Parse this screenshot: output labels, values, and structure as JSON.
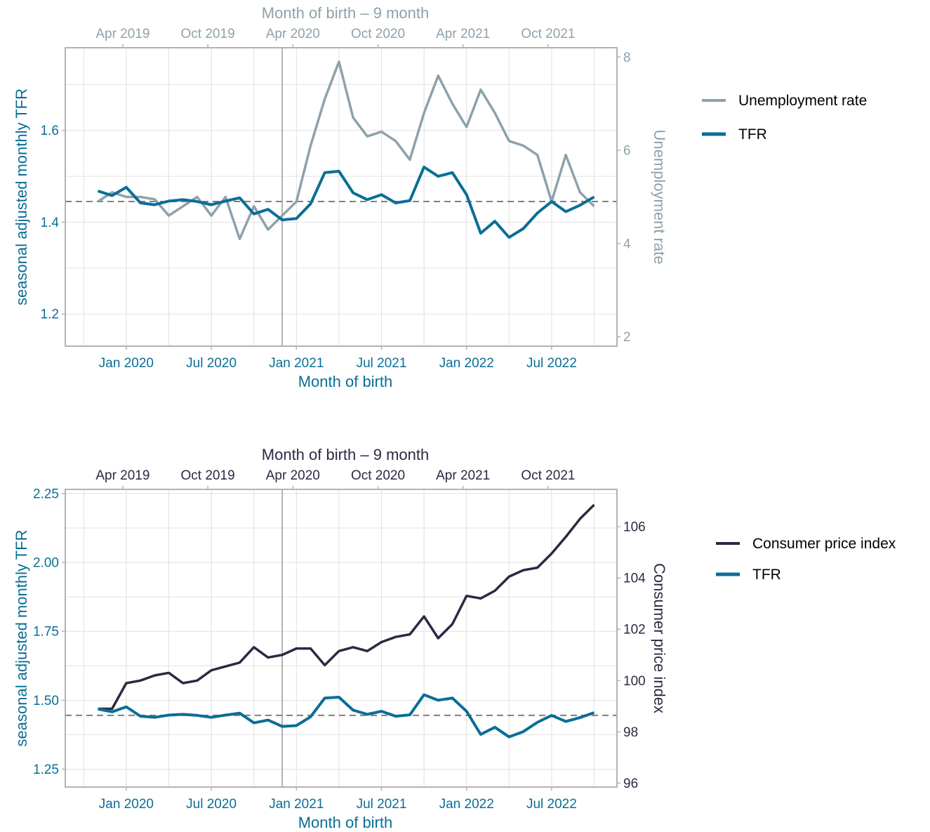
{
  "colors": {
    "tfr": "#0a6e96",
    "unemployment": "#8fa1ab",
    "cpi": "#2e2843",
    "reference": "#7f7f7f",
    "grid": "#e0e0e0",
    "frame": "#b3b3b3"
  },
  "chart_data": [
    {
      "type": "line",
      "xlabel": "Month of birth",
      "x2label": "Month of birth – 9 month",
      "ylabel": "seasonal adjusted monthly TFR",
      "y2label": "Unemployment rate",
      "x_ticks": [
        "Jan 2020",
        "Jul 2020",
        "Jan 2021",
        "Jul 2021",
        "Jan 2022",
        "Jul 2022"
      ],
      "x2_ticks": [
        "Apr 2019",
        "Oct 2019",
        "Apr 2020",
        "Oct 2020",
        "Apr 2021",
        "Oct 2021"
      ],
      "y_ticks": [
        "1.2",
        "1.4",
        "1.6"
      ],
      "y2_ticks": [
        "2",
        "4",
        "6",
        "8"
      ],
      "x_start": "Nov 2019",
      "ylim": [
        1.13,
        1.78
      ],
      "y2lim": [
        1.8,
        8.2
      ],
      "reference_line": 1.445,
      "vertical_line": "Dec 2020",
      "grid": true,
      "legend_position": "right",
      "legend": [
        "Unemployment rate",
        "TFR"
      ],
      "series": [
        {
          "name": "TFR",
          "axis": "left",
          "values": [
            1.468,
            1.458,
            1.476,
            1.442,
            1.438,
            1.446,
            1.449,
            1.445,
            1.438,
            1.446,
            1.453,
            1.418,
            1.428,
            1.405,
            1.408,
            1.44,
            1.508,
            1.511,
            1.464,
            1.449,
            1.46,
            1.442,
            1.447,
            1.52,
            1.5,
            1.508,
            1.46,
            1.376,
            1.402,
            1.367,
            1.386,
            1.42,
            1.445,
            1.423,
            1.437,
            1.455
          ]
        },
        {
          "name": "Unemployment rate",
          "axis": "right",
          "values": [
            4.9,
            5.1,
            5.0,
            5.0,
            4.95,
            4.6,
            4.8,
            5.0,
            4.6,
            5.0,
            4.1,
            4.8,
            4.3,
            4.6,
            4.9,
            6.1,
            7.1,
            7.9,
            6.7,
            6.3,
            6.4,
            6.2,
            5.8,
            6.8,
            7.6,
            7.0,
            6.5,
            7.3,
            6.8,
            6.2,
            6.1,
            5.9,
            4.9,
            5.9,
            5.1,
            4.8
          ]
        }
      ]
    },
    {
      "type": "line",
      "xlabel": "Month of birth",
      "x2label": "Month of birth – 9 month",
      "ylabel": "seasonal adjusted monthly TFR",
      "y2label": "Consumer price index",
      "x_ticks": [
        "Jan 2020",
        "Jul 2020",
        "Jan 2021",
        "Jul 2021",
        "Jan 2022",
        "Jul 2022"
      ],
      "x2_ticks": [
        "Apr 2019",
        "Oct 2019",
        "Apr 2020",
        "Oct 2020",
        "Apr 2021",
        "Oct 2021"
      ],
      "y_ticks": [
        "1.25",
        "1.50",
        "1.75",
        "2.00",
        "2.25"
      ],
      "y2_ticks": [
        "96",
        "98",
        "100",
        "102",
        "104",
        "106"
      ],
      "x_start": "Nov 2019",
      "ylim": [
        1.185,
        2.265
      ],
      "y2lim": [
        95.85,
        107.45
      ],
      "reference_line": 1.445,
      "vertical_line": "Dec 2020",
      "grid": true,
      "legend_position": "right",
      "legend": [
        "Consumer price index",
        "TFR"
      ],
      "series": [
        {
          "name": "TFR",
          "axis": "left",
          "values": [
            1.468,
            1.458,
            1.476,
            1.442,
            1.438,
            1.446,
            1.449,
            1.445,
            1.438,
            1.446,
            1.453,
            1.418,
            1.428,
            1.405,
            1.408,
            1.44,
            1.508,
            1.511,
            1.464,
            1.449,
            1.46,
            1.442,
            1.447,
            1.52,
            1.5,
            1.508,
            1.46,
            1.376,
            1.402,
            1.367,
            1.386,
            1.42,
            1.445,
            1.423,
            1.437,
            1.455
          ]
        },
        {
          "name": "Consumer price index",
          "axis": "right",
          "values": [
            98.9,
            98.9,
            99.9,
            100.0,
            100.2,
            100.3,
            99.9,
            100.0,
            100.4,
            100.55,
            100.7,
            101.3,
            100.9,
            101.0,
            101.25,
            101.25,
            100.6,
            101.15,
            101.3,
            101.15,
            101.5,
            101.7,
            101.8,
            102.5,
            101.65,
            102.2,
            103.3,
            103.2,
            103.5,
            104.05,
            104.3,
            104.4,
            104.95,
            105.6,
            106.3,
            106.85
          ]
        }
      ]
    }
  ]
}
